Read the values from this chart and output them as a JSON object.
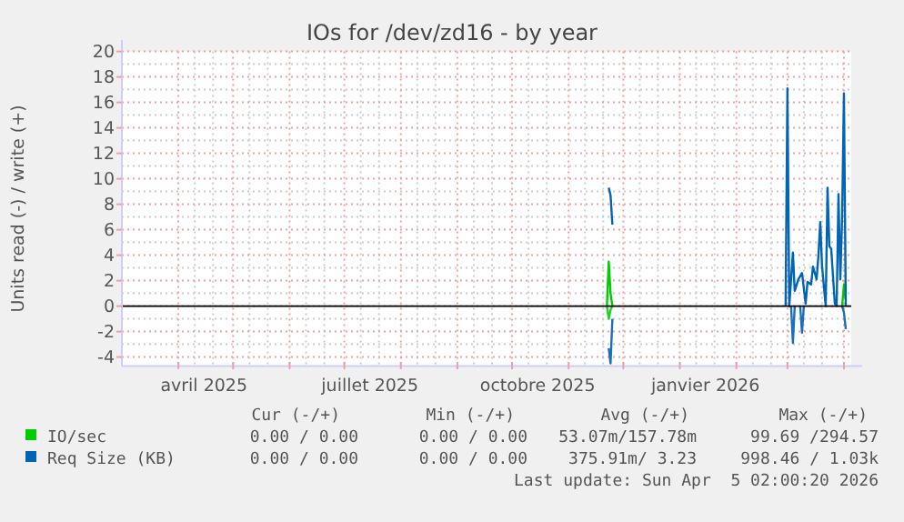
{
  "chart_data": {
    "type": "line",
    "title": "IOs for /dev/zd16 - by year",
    "ylabel": "Units read (-) / write (+)",
    "xlim": [
      "2025-03-01",
      "2026-04-05"
    ],
    "ylim": [
      -4.7,
      20
    ],
    "yticks": [
      -4,
      -2,
      0,
      2,
      4,
      6,
      8,
      10,
      12,
      14,
      16,
      18,
      20
    ],
    "xticks": [
      {
        "value": "2025-04-01",
        "label": null
      },
      {
        "value": "2025-05-01",
        "label": null
      },
      {
        "value": "2025-06-01",
        "label": null
      },
      {
        "value": "2025-07-01",
        "label": null
      },
      {
        "value": "2025-08-01",
        "label": null
      },
      {
        "value": "2025-09-01",
        "label": null
      },
      {
        "value": "2025-10-01",
        "label": null
      },
      {
        "value": "2025-11-01",
        "label": null
      },
      {
        "value": "2025-12-01",
        "label": null
      },
      {
        "value": "2026-01-01",
        "label": null
      },
      {
        "value": "2026-02-01",
        "label": null
      },
      {
        "value": "2026-03-01",
        "label": null
      },
      {
        "value": "2026-04-01",
        "label": null
      },
      {
        "value": "2025-04-15",
        "label": "avril 2025"
      },
      {
        "value": "2025-07-15",
        "label": "juillet 2025"
      },
      {
        "value": "2025-10-15",
        "label": "octobre 2025"
      },
      {
        "value": "2026-01-15",
        "label": "janvier 2026"
      }
    ],
    "grid": true,
    "legend": "bottom",
    "line_style": "solid",
    "series": [
      {
        "name": "IO/sec",
        "color": "#00cc00",
        "x": [
          "2025-11-22",
          "2025-11-23",
          "2025-11-24",
          "2025-11-25",
          "2026-01-01",
          "2026-03-31",
          "2026-04-01",
          "2026-04-02"
        ],
        "values": [
          0,
          3.5,
          1,
          0,
          null,
          0,
          1.7,
          0.5
        ]
      },
      {
        "color": "#22d022",
        "x": [
          "2025-11-22",
          "2025-11-23",
          "2025-11-24",
          "2025-11-25"
        ],
        "values": [
          0,
          -1,
          -0.3,
          0
        ]
      },
      {
        "name": "Req Size (KB)",
        "color": "#0066b3",
        "x": [
          "2025-11-23",
          "2025-11-24",
          "2025-11-25",
          "2026-01-01",
          "2026-02-28",
          "2026-03-01",
          "2026-03-02",
          "2026-03-04",
          "2026-03-05",
          "2026-03-07",
          "2026-03-09",
          "2026-03-11",
          "2026-03-12",
          "2026-03-14",
          "2026-03-15",
          "2026-03-17",
          "2026-03-18",
          "2026-03-19",
          "2026-03-20",
          "2026-03-22",
          "2026-03-23",
          "2026-03-24",
          "2026-03-25",
          "2026-03-27",
          "2026-03-28",
          "2026-03-29",
          "2026-03-30",
          "2026-03-31",
          "2026-04-01",
          "2026-04-02"
        ],
        "values": [
          9.3,
          8.7,
          6.4,
          null,
          0,
          17.1,
          0,
          4.2,
          1.2,
          2.1,
          2.6,
          0.2,
          1.9,
          1.7,
          3.1,
          2.1,
          4.0,
          6.6,
          3.1,
          0,
          9.3,
          4.7,
          4.5,
          0.2,
          0,
          8.8,
          2.1,
          7.0,
          16.7,
          0
        ]
      },
      {
        "color": "#1a70bb",
        "x": [
          "2025-11-23",
          "2025-11-24",
          "2025-11-25",
          "2026-01-01",
          "2026-03-03",
          "2026-03-04",
          "2026-03-05",
          "2026-03-06",
          "2026-03-08",
          "2026-03-09",
          "2026-03-10",
          "2026-03-20",
          "2026-03-31",
          "2026-04-01",
          "2026-04-02"
        ],
        "values": [
          -3.3,
          -4.5,
          -1,
          null,
          0,
          -2.9,
          0,
          null,
          0,
          -2.1,
          0,
          null,
          0,
          -0.5,
          -1.8
        ]
      }
    ],
    "annotations": [
      "Cur (-/+)",
      "Min (-/+)",
      "Avg (-/+)",
      "Max (-/+)",
      "0.00 / 0.00",
      "0.00 / 0.00",
      "53.07m/157.78m",
      "99.69 /294.57",
      "0.00 / 0.00",
      "0.00 / 0.00",
      "375.91m/ 3.23",
      "998.46 / 1.03k",
      "Last update: Sun Apr  5 02:00:20 2026"
    ]
  }
}
